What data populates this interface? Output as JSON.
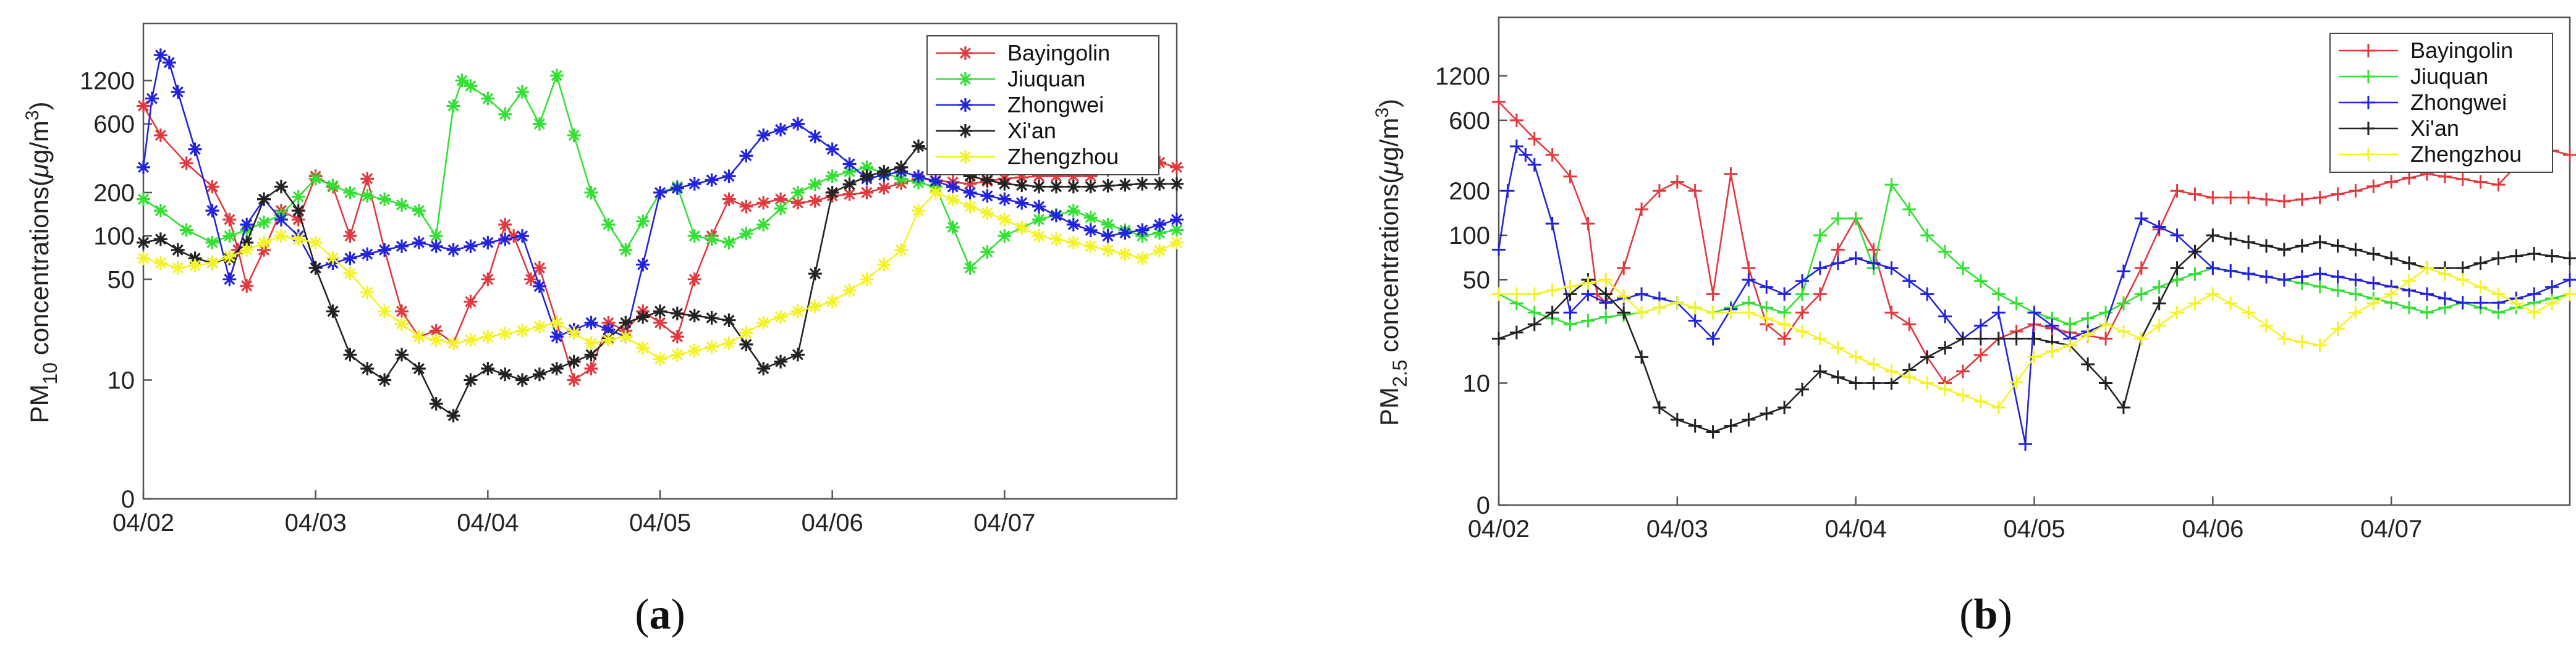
{
  "series_colors": {
    "Bayingolin": "#e0393e",
    "Jiuquan": "#33e033",
    "Zhongwei": "#2323dc",
    "Xi'an": "#222222",
    "Zhengzhou": "#f3f328"
  },
  "chart_data": [
    {
      "type": "line",
      "panel_caption": "a",
      "ylabel_main": "PM",
      "ylabel_sub": "10",
      "ylabel_rest": " concentrations(",
      "ylabel_mu": "μ",
      "ylabel_unit": "g/m",
      "ylabel_sup": "3",
      "ylabel_close": ")",
      "xlabels": [
        "04/02",
        "04/03",
        "04/04",
        "04/05",
        "04/06",
        "04/07"
      ],
      "yticks": [
        0,
        10,
        50,
        100,
        200,
        600,
        1200
      ],
      "ytick_labels": [
        "0",
        "10",
        "50",
        "100",
        "200",
        "600",
        "1200"
      ],
      "xlim": [
        0,
        6
      ],
      "marker": "asterisk",
      "legend_position": "top-right",
      "series": [
        {
          "name": "Bayingolin",
          "x": [
            0,
            0.1,
            0.25,
            0.4,
            0.5,
            0.55,
            0.6,
            0.7,
            0.8,
            0.9,
            1.0,
            1.1,
            1.2,
            1.3,
            1.4,
            1.5,
            1.6,
            1.7,
            1.8,
            1.9,
            2.0,
            2.1,
            2.15,
            2.25,
            2.3,
            2.4,
            2.5,
            2.6,
            2.7,
            2.8,
            2.9,
            3.0,
            3.1,
            3.2,
            3.3,
            3.4,
            3.5,
            3.6,
            3.7,
            3.8,
            3.9,
            4.0,
            4.2,
            4.5,
            4.8,
            5.0,
            5.2,
            5.5,
            5.8,
            6.0
          ],
          "values": [
            800,
            500,
            320,
            220,
            130,
            80,
            45,
            80,
            150,
            130,
            260,
            220,
            100,
            250,
            80,
            30,
            20,
            22,
            18,
            35,
            50,
            120,
            100,
            50,
            60,
            25,
            10,
            12,
            25,
            22,
            30,
            25,
            20,
            50,
            100,
            180,
            160,
            170,
            180,
            170,
            175,
            190,
            200,
            250,
            230,
            250,
            260,
            260,
            350,
            300
          ]
        },
        {
          "name": "Jiuquan",
          "x": [
            0,
            0.1,
            0.25,
            0.4,
            0.5,
            0.6,
            0.8,
            1.0,
            1.2,
            1.4,
            1.6,
            1.7,
            1.8,
            1.85,
            1.9,
            2.0,
            2.1,
            2.2,
            2.3,
            2.4,
            2.5,
            2.6,
            2.7,
            2.8,
            3.0,
            3.1,
            3.2,
            3.4,
            3.6,
            3.8,
            4.0,
            4.2,
            4.4,
            4.6,
            4.8,
            5.0,
            5.2,
            5.4,
            5.6,
            5.8,
            6.0
          ],
          "values": [
            180,
            150,
            110,
            90,
            100,
            110,
            140,
            250,
            200,
            180,
            150,
            100,
            800,
            1200,
            1100,
            900,
            700,
            1000,
            600,
            1300,
            500,
            200,
            120,
            80,
            200,
            220,
            100,
            90,
            120,
            200,
            260,
            300,
            250,
            220,
            60,
            100,
            130,
            150,
            120,
            100,
            110
          ]
        },
        {
          "name": "Zhongwei",
          "x": [
            0,
            0.05,
            0.1,
            0.15,
            0.2,
            0.3,
            0.4,
            0.5,
            0.6,
            0.7,
            0.8,
            0.9,
            1.0,
            1.2,
            1.4,
            1.6,
            1.8,
            2.0,
            2.2,
            2.4,
            2.6,
            2.8,
            3.0,
            3.2,
            3.4,
            3.6,
            3.8,
            4.0,
            4.2,
            4.4,
            4.6,
            4.8,
            5.0,
            5.2,
            5.4,
            5.6,
            5.8,
            6.0
          ],
          "values": [
            300,
            900,
            1800,
            1600,
            1000,
            400,
            150,
            50,
            120,
            180,
            130,
            100,
            60,
            70,
            80,
            90,
            80,
            90,
            100,
            20,
            25,
            20,
            200,
            230,
            260,
            500,
            600,
            400,
            250,
            280,
            240,
            200,
            180,
            160,
            120,
            100,
            110,
            130
          ]
        },
        {
          "name": "Xi'an",
          "x": [
            0,
            0.1,
            0.2,
            0.3,
            0.4,
            0.5,
            0.6,
            0.7,
            0.8,
            0.9,
            1.0,
            1.1,
            1.2,
            1.3,
            1.4,
            1.5,
            1.6,
            1.7,
            1.8,
            1.9,
            2.0,
            2.2,
            2.4,
            2.6,
            2.8,
            3.0,
            3.2,
            3.4,
            3.6,
            3.8,
            4.0,
            4.2,
            4.4,
            4.5,
            4.6,
            4.8,
            5.0,
            5.2,
            5.5,
            5.8,
            6.0
          ],
          "values": [
            90,
            95,
            80,
            70,
            65,
            70,
            90,
            180,
            220,
            150,
            60,
            30,
            15,
            12,
            10,
            15,
            12,
            8,
            7,
            10,
            12,
            10,
            12,
            15,
            25,
            30,
            28,
            26,
            12,
            15,
            200,
            260,
            300,
            420,
            380,
            260,
            230,
            220,
            220,
            230,
            230
          ]
        },
        {
          "name": "Zhengzhou",
          "x": [
            0,
            0.2,
            0.4,
            0.6,
            0.8,
            1.0,
            1.2,
            1.4,
            1.6,
            1.8,
            2.0,
            2.2,
            2.4,
            2.6,
            2.8,
            3.0,
            3.2,
            3.4,
            3.6,
            3.8,
            4.0,
            4.2,
            4.4,
            4.5,
            4.6,
            4.8,
            5.0,
            5.2,
            5.4,
            5.6,
            5.8,
            6.0
          ],
          "values": [
            70,
            60,
            65,
            80,
            100,
            90,
            55,
            30,
            20,
            18,
            20,
            22,
            25,
            18,
            20,
            14,
            16,
            18,
            25,
            30,
            35,
            50,
            80,
            150,
            200,
            160,
            130,
            100,
            90,
            80,
            70,
            90
          ]
        }
      ]
    },
    {
      "type": "line",
      "panel_caption": "b",
      "ylabel_main": "PM",
      "ylabel_sub": "2.5",
      "ylabel_rest": " concentrations(",
      "ylabel_mu": "μ",
      "ylabel_unit": "g/m",
      "ylabel_sup": "3",
      "ylabel_close": ")",
      "xlabels": [
        "04/02",
        "04/03",
        "04/04",
        "04/05",
        "04/06",
        "04/07"
      ],
      "yticks": [
        0,
        10,
        50,
        100,
        200,
        600,
        1200
      ],
      "ytick_labels": [
        "0",
        "10",
        "50",
        "100",
        "200",
        "600",
        "1200"
      ],
      "xlim": [
        0,
        6
      ],
      "marker": "plus",
      "legend_position": "top-right",
      "series": [
        {
          "name": "Bayingolin",
          "x": [
            0,
            0.1,
            0.2,
            0.3,
            0.4,
            0.5,
            0.55,
            0.6,
            0.7,
            0.8,
            0.9,
            1.0,
            1.1,
            1.2,
            1.3,
            1.4,
            1.5,
            1.6,
            1.7,
            1.8,
            1.9,
            2.0,
            2.1,
            2.2,
            2.3,
            2.4,
            2.5,
            2.6,
            2.8,
            3.0,
            3.2,
            3.4,
            3.6,
            3.8,
            4.0,
            4.2,
            4.4,
            4.6,
            4.8,
            5.0,
            5.2,
            5.4,
            5.6,
            5.8,
            6.0
          ],
          "values": [
            800,
            600,
            450,
            350,
            250,
            120,
            40,
            35,
            60,
            150,
            200,
            230,
            200,
            40,
            260,
            60,
            25,
            20,
            30,
            40,
            80,
            130,
            80,
            30,
            25,
            15,
            10,
            12,
            20,
            25,
            22,
            20,
            60,
            200,
            180,
            180,
            170,
            180,
            200,
            230,
            260,
            240,
            220,
            400,
            350
          ]
        },
        {
          "name": "Jiuquan",
          "x": [
            0,
            0.2,
            0.4,
            0.6,
            0.8,
            1.0,
            1.2,
            1.4,
            1.6,
            1.7,
            1.8,
            1.9,
            2.0,
            2.1,
            2.2,
            2.3,
            2.4,
            2.6,
            2.8,
            3.0,
            3.2,
            3.4,
            3.6,
            3.8,
            4.0,
            4.2,
            4.4,
            4.6,
            4.8,
            5.0,
            5.2,
            5.4,
            5.6,
            5.8,
            6.0
          ],
          "values": [
            40,
            30,
            25,
            28,
            30,
            35,
            30,
            35,
            30,
            40,
            100,
            130,
            130,
            60,
            220,
            150,
            100,
            60,
            40,
            30,
            25,
            30,
            40,
            50,
            60,
            55,
            50,
            45,
            40,
            35,
            30,
            35,
            30,
            35,
            40
          ]
        },
        {
          "name": "Zhongwei",
          "x": [
            0,
            0.05,
            0.1,
            0.15,
            0.2,
            0.3,
            0.4,
            0.5,
            0.6,
            0.8,
            1.0,
            1.2,
            1.4,
            1.6,
            1.8,
            2.0,
            2.2,
            2.4,
            2.6,
            2.8,
            2.95,
            3.0,
            3.2,
            3.4,
            3.6,
            3.8,
            4.0,
            4.2,
            4.4,
            4.6,
            4.8,
            5.0,
            5.2,
            5.4,
            5.6,
            5.8,
            6.0
          ],
          "values": [
            80,
            200,
            400,
            350,
            300,
            120,
            30,
            40,
            35,
            40,
            35,
            20,
            50,
            40,
            60,
            70,
            60,
            40,
            20,
            30,
            5,
            30,
            20,
            25,
            130,
            100,
            60,
            55,
            50,
            55,
            50,
            45,
            40,
            35,
            35,
            40,
            50
          ]
        },
        {
          "name": "Xi'an",
          "x": [
            0,
            0.1,
            0.2,
            0.3,
            0.4,
            0.5,
            0.6,
            0.7,
            0.8,
            0.9,
            1.0,
            1.2,
            1.4,
            1.6,
            1.8,
            2.0,
            2.2,
            2.4,
            2.6,
            2.8,
            3.0,
            3.2,
            3.4,
            3.5,
            3.6,
            3.8,
            4.0,
            4.2,
            4.4,
            4.6,
            4.8,
            5.0,
            5.2,
            5.4,
            5.6,
            5.8,
            6.0
          ],
          "values": [
            20,
            22,
            25,
            30,
            40,
            50,
            40,
            30,
            15,
            8,
            7,
            6,
            7,
            8,
            12,
            10,
            10,
            15,
            20,
            20,
            20,
            18,
            10,
            8,
            20,
            60,
            100,
            90,
            80,
            90,
            80,
            70,
            60,
            60,
            70,
            75,
            70
          ]
        },
        {
          "name": "Zhengzhou",
          "x": [
            0,
            0.2,
            0.4,
            0.6,
            0.8,
            1.0,
            1.2,
            1.4,
            1.6,
            1.8,
            2.0,
            2.2,
            2.4,
            2.6,
            2.8,
            3.0,
            3.2,
            3.4,
            3.6,
            3.8,
            4.0,
            4.2,
            4.4,
            4.6,
            4.8,
            5.0,
            5.2,
            5.4,
            5.6,
            5.8,
            6.0
          ],
          "values": [
            40,
            40,
            45,
            50,
            30,
            35,
            30,
            30,
            25,
            20,
            15,
            12,
            10,
            9,
            8,
            15,
            18,
            25,
            20,
            30,
            40,
            30,
            20,
            18,
            30,
            40,
            60,
            50,
            40,
            30,
            40
          ]
        }
      ]
    }
  ]
}
